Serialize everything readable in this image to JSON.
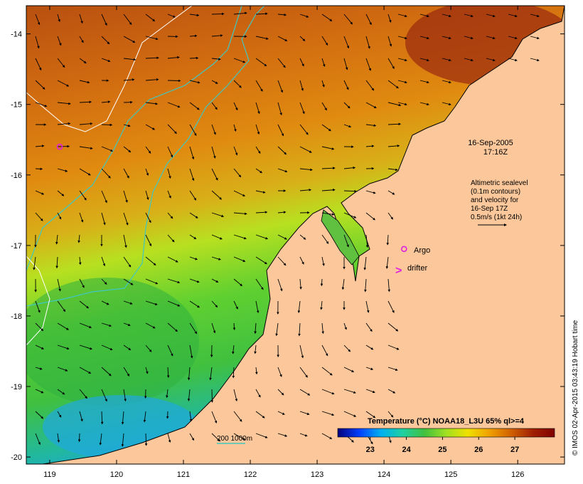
{
  "map": {
    "lon_range": [
      118.65,
      126.7
    ],
    "lat_range": [
      -20.1,
      -13.6
    ],
    "lon_ticks": [
      119,
      120,
      121,
      122,
      123,
      124,
      125,
      126
    ],
    "lat_ticks": [
      -14,
      -15,
      -16,
      -17,
      -18,
      -19,
      -20
    ],
    "lon_tick_labels": [
      "119",
      "120",
      "121",
      "122",
      "123",
      "124",
      "125",
      "126"
    ],
    "lat_tick_labels": [
      "-14",
      "-15",
      "-16",
      "-17",
      "-18",
      "-19",
      "-20"
    ],
    "land_color": "#fcc89b",
    "ocean_colors": {
      "warm_north": "#b04a10",
      "orange": "#e08a10",
      "yellow_green": "#b8e020",
      "green": "#40c040",
      "cyan": "#20a8e0"
    }
  },
  "annotations": {
    "datetime_line1": "16-Sep-2005",
    "datetime_line2": "17:16Z",
    "altimetry_lines": [
      "Altimetric sealevel",
      "(0.1m contours)",
      "and velocity for",
      "16-Sep 17Z",
      "0.5m/s (1kt 24h)"
    ],
    "argo_label": "Argo",
    "drifter_label": "drifter",
    "depth_label": "200  1000m",
    "argo_color": "#e020e0",
    "drifter_color": "#e020e0",
    "isobath_color": "#40c8c0"
  },
  "argo_floats": [
    {
      "lon": 119.15,
      "lat": -15.6
    },
    {
      "lon": 124.3,
      "lat": -17.05
    }
  ],
  "colorbar": {
    "title": "Temperature (°C) NOAA18_L3U 65% ql>=4",
    "min": 22.1,
    "max": 28.1,
    "tick_values": [
      23,
      24,
      25,
      26,
      27
    ],
    "tick_labels": [
      "23",
      "24",
      "25",
      "26",
      "27"
    ],
    "colors": [
      "#00007a",
      "#0040ff",
      "#00b0f0",
      "#20d0a0",
      "#40c040",
      "#a0e020",
      "#f0e000",
      "#f0a000",
      "#d06000",
      "#a02000",
      "#800000"
    ]
  },
  "credit": "© IMOS 02-Apr-2015 03:43:19 Hobart time"
}
